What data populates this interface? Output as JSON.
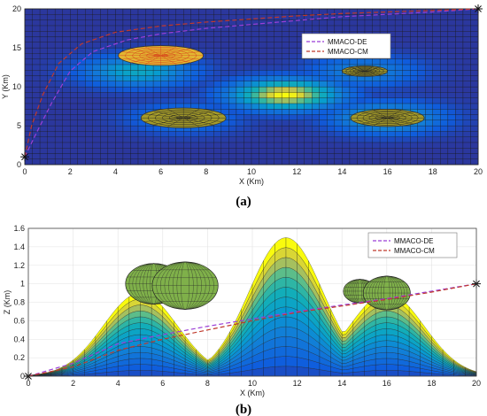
{
  "colors": {
    "de_line": "#9b3fd6",
    "cm_line": "#c0392b",
    "map_low": "#3b2aa8",
    "map_high": "#f4e81c",
    "threat_fill": "#8c8c12",
    "threat_grid": "#d63a1a",
    "threat_grid_b": "#222222"
  },
  "chart_data": [
    {
      "type": "heatmap",
      "panel_label": "(a)",
      "xlabel": "X (Km)",
      "ylabel": "Y (Km)",
      "xlim": [
        0,
        20
      ],
      "ylim": [
        0,
        20
      ],
      "xticks": [
        "0",
        "2",
        "4",
        "6",
        "8",
        "10",
        "12",
        "14",
        "16",
        "18",
        "20"
      ],
      "yticks": [
        "0",
        "5",
        "10",
        "15",
        "20"
      ],
      "legend": {
        "position": "top-right",
        "entries": [
          "MMACO-DE",
          "MMACO-CM"
        ]
      },
      "terrain_peaks": [
        {
          "x": 5,
          "y": 12,
          "height": 0.9
        },
        {
          "x": 11.5,
          "y": 9,
          "height": 1.5
        },
        {
          "x": 15,
          "y": 12,
          "height": 0.6
        },
        {
          "x": 16,
          "y": 6,
          "height": 0.9
        },
        {
          "x": 7,
          "y": 6,
          "height": 0.5
        }
      ],
      "threats": [
        {
          "x": 6,
          "y": 14,
          "r": 1.5
        },
        {
          "x": 7,
          "y": 6,
          "r": 1.5
        },
        {
          "x": 15,
          "y": 12,
          "r": 0.8
        },
        {
          "x": 16,
          "y": 6,
          "r": 1.3
        }
      ],
      "start": {
        "x": 0,
        "y": 1
      },
      "goal": {
        "x": 20,
        "y": 20
      },
      "series": [
        {
          "name": "MMACO-DE",
          "x": [
            0,
            0.5,
            1.2,
            2,
            3,
            4.5,
            6,
            8,
            10,
            12,
            14,
            16,
            18,
            20
          ],
          "y": [
            1,
            4,
            8,
            12,
            14.5,
            16,
            16.8,
            17.5,
            18,
            18.5,
            19,
            19.3,
            19.6,
            20
          ]
        },
        {
          "name": "MMACO-CM",
          "x": [
            0,
            0.3,
            0.8,
            1.5,
            2.5,
            4,
            6,
            8,
            10,
            12,
            14,
            16,
            18,
            20
          ],
          "y": [
            1,
            5,
            9,
            13,
            15.5,
            17,
            17.8,
            18.3,
            18.7,
            19.1,
            19.4,
            19.6,
            19.8,
            20
          ]
        }
      ]
    },
    {
      "type": "area",
      "panel_label": "(b)",
      "xlabel": "X (Km)",
      "ylabel": "Z (Km)",
      "xlim": [
        0,
        20
      ],
      "ylim": [
        0,
        1.6
      ],
      "xticks": [
        "0",
        "2",
        "4",
        "6",
        "8",
        "10",
        "12",
        "14",
        "16",
        "18",
        "20"
      ],
      "yticks": [
        "0",
        "0.2",
        "0.4",
        "0.6",
        "0.8",
        "1",
        "1.2",
        "1.4",
        "1.6"
      ],
      "legend": {
        "position": "top-right",
        "entries": [
          "MMACO-DE",
          "MMACO-CM"
        ]
      },
      "terrain_peaks": [
        {
          "x": 5,
          "height": 0.9
        },
        {
          "x": 11.5,
          "height": 1.5
        },
        {
          "x": 16,
          "height": 0.9
        }
      ],
      "threat_spheres": [
        {
          "x": 5.6,
          "z": 1.0,
          "r": 1.2
        },
        {
          "x": 7.0,
          "z": 0.98,
          "r": 1.4
        },
        {
          "x": 14.8,
          "z": 0.92,
          "r": 0.7
        },
        {
          "x": 16.0,
          "z": 0.9,
          "r": 1.0
        }
      ],
      "start": {
        "x": 0,
        "z": 0
      },
      "goal": {
        "x": 20,
        "z": 1.0
      },
      "series": [
        {
          "name": "MMACO-DE",
          "x": [
            0,
            2,
            4,
            6,
            8,
            10,
            12,
            14,
            16,
            18,
            20
          ],
          "y": [
            0,
            0.14,
            0.35,
            0.45,
            0.54,
            0.62,
            0.7,
            0.77,
            0.84,
            0.92,
            1.0
          ]
        },
        {
          "name": "MMACO-CM",
          "x": [
            0,
            2,
            4,
            6,
            8,
            10,
            12,
            14,
            16,
            18,
            20
          ],
          "y": [
            0,
            0.1,
            0.28,
            0.4,
            0.5,
            0.6,
            0.69,
            0.76,
            0.83,
            0.91,
            1.0
          ]
        }
      ]
    }
  ]
}
